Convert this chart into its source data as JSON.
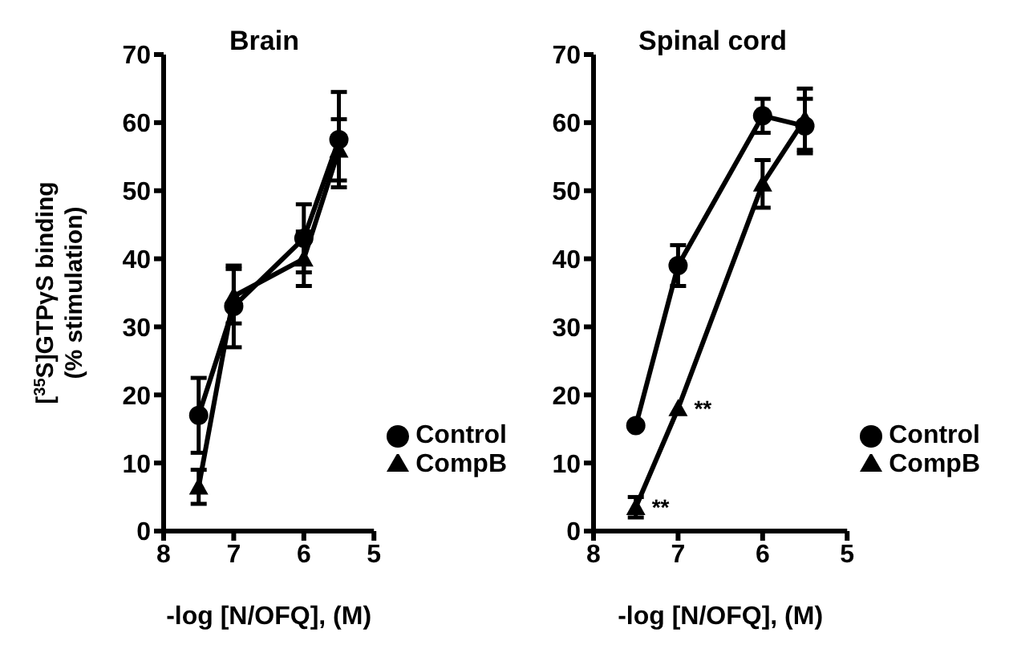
{
  "chart_data": [
    {
      "type": "line",
      "title": "Brain",
      "xlabel": "-log [N/OFQ], (M)",
      "ylabel": "[$^{35}$S]GTPγS binding\n(% stimulation)",
      "x": [
        7.5,
        7,
        6,
        5.5
      ],
      "xlim": [
        8,
        5
      ],
      "xticks": [
        8,
        7,
        6,
        5
      ],
      "ylim": [
        0,
        70
      ],
      "yticks": [
        0,
        10,
        20,
        30,
        40,
        50,
        60,
        70
      ],
      "grid": false,
      "legend": "bottom right",
      "series": [
        {
          "name": "Control",
          "color": "#000000",
          "marker": "circle",
          "values": [
            17,
            33,
            43,
            57.5
          ],
          "errors": [
            5.5,
            6,
            5,
            7
          ]
        },
        {
          "name": "CompB",
          "color": "#000000",
          "marker": "triangle",
          "values": [
            6.5,
            34.5,
            40,
            56
          ],
          "errors": [
            2.5,
            4,
            4,
            4.5
          ]
        }
      ]
    },
    {
      "type": "line",
      "title": "Spinal cord",
      "xlabel": "-log [N/OFQ], (M)",
      "x": [
        7.5,
        7,
        6,
        5.5
      ],
      "xlim": [
        8,
        5
      ],
      "xticks": [
        8,
        7,
        6,
        5
      ],
      "ylim": [
        0,
        70
      ],
      "yticks": [
        0,
        10,
        20,
        30,
        40,
        50,
        60,
        70
      ],
      "grid": false,
      "legend": "bottom right",
      "annotations": [
        {
          "text": "**",
          "x": 7,
          "y": 18
        },
        {
          "text": "**",
          "x": 7.5,
          "y": 3.5
        }
      ],
      "series": [
        {
          "name": "Control",
          "color": "#000000",
          "marker": "circle",
          "values": [
            15.5,
            39,
            61,
            59.5
          ],
          "errors": [
            null,
            3,
            2.5,
            4
          ]
        },
        {
          "name": "CompB",
          "color": "#000000",
          "marker": "triangle",
          "values": [
            3.5,
            18,
            51,
            60.5
          ],
          "errors": [
            1.5,
            null,
            3.5,
            4.5
          ]
        }
      ]
    }
  ]
}
